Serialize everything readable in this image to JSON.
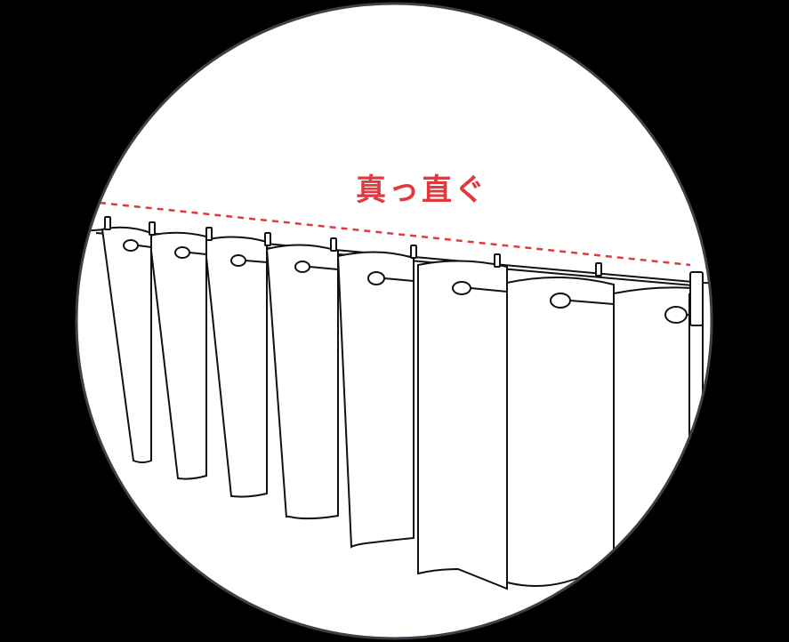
{
  "label": {
    "text": "真っ直ぐ"
  },
  "colors": {
    "background": "#000000",
    "circle_fill": "#ffffff",
    "circle_border": "#3d4049",
    "line_art": "#111111",
    "accent": "#e03a3e"
  },
  "illustration": {
    "subject": "curtain-hanging-on-rod",
    "panel_count": 8,
    "guide_line": "dashed"
  }
}
